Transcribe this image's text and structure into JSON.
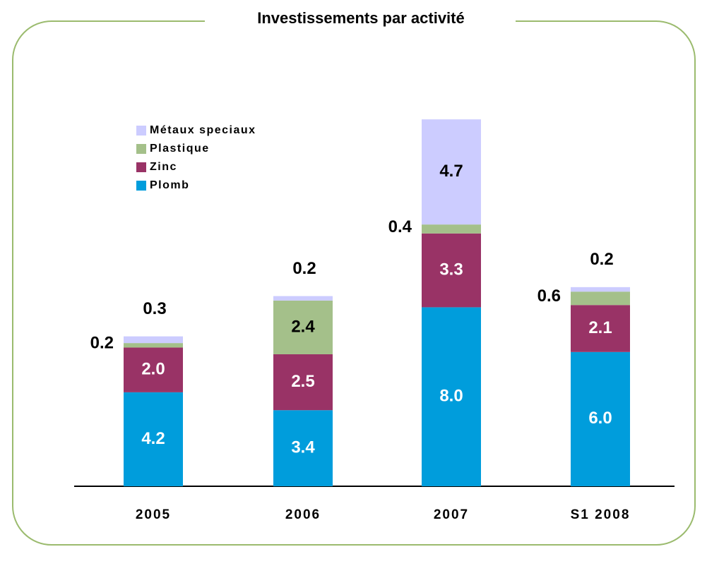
{
  "chart_data": {
    "type": "stacked_bar",
    "title": "Investissements par activité",
    "categories": [
      "2005",
      "2006",
      "2007",
      "S1 2008"
    ],
    "series": [
      {
        "name": "Plomb",
        "color": "#009ddc",
        "values": [
          4.2,
          3.4,
          8.0,
          6.0
        ],
        "value_labels": [
          "4.2",
          "3.4",
          "8.0",
          "6.0"
        ]
      },
      {
        "name": "Zinc",
        "color": "#993366",
        "values": [
          2.0,
          2.5,
          3.3,
          2.1
        ],
        "value_labels": [
          "2.0",
          "2.5",
          "3.3",
          "2.1"
        ]
      },
      {
        "name": "Plastique",
        "color": "#a4c08a",
        "values": [
          0.2,
          2.4,
          0.4,
          0.6
        ],
        "value_labels": [
          "0.2",
          "2.4",
          "0.4",
          "0.6"
        ]
      },
      {
        "name": "Métaux speciaux",
        "color": "#ccccff",
        "values": [
          0.3,
          0.2,
          4.7,
          0.2
        ],
        "value_labels": [
          "0.3",
          "0.2",
          "4.7",
          "0.2"
        ]
      }
    ]
  }
}
